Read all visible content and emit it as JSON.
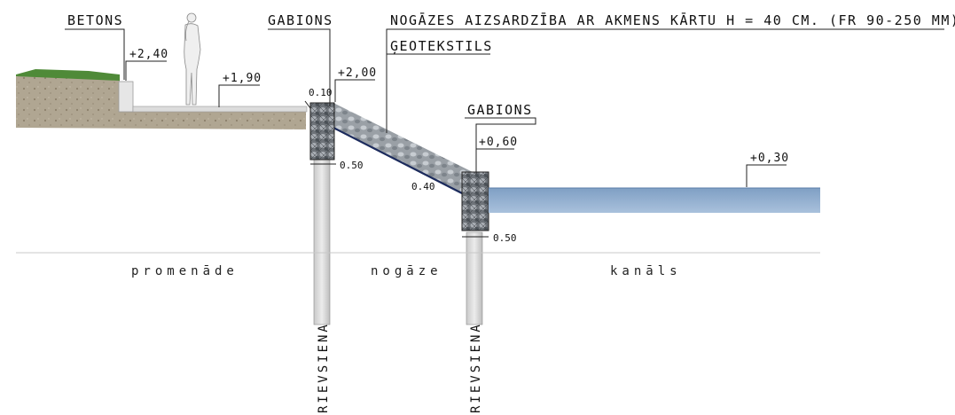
{
  "labels": {
    "betons": "BETONS",
    "gabions_top": "GABIONS",
    "protection": "NOGĀZES AIZSARDZĪBA  AR AKMENS KĀRTU H = 40 CM. (FR 90-250 MM)",
    "geotextile": "ĢEOTEKSTILS",
    "gabions_low": "GABIONS"
  },
  "levels": {
    "concrete_top": "+2,40",
    "promenade": "+1,90",
    "gabion_top": "+2,00",
    "gabion_low": "+0,60",
    "water": "+0,30"
  },
  "dimensions": {
    "gap": "0.10",
    "gabion_width_top": "0.50",
    "slope_thickness": "0.40",
    "gabion_width_low": "0.50"
  },
  "zones": {
    "promenade": "promenāde",
    "slope": "nogāze",
    "canal": "kanāls"
  },
  "sheet_piles": {
    "left": "RIEVSIENA",
    "right": "RIEVSIENA"
  }
}
